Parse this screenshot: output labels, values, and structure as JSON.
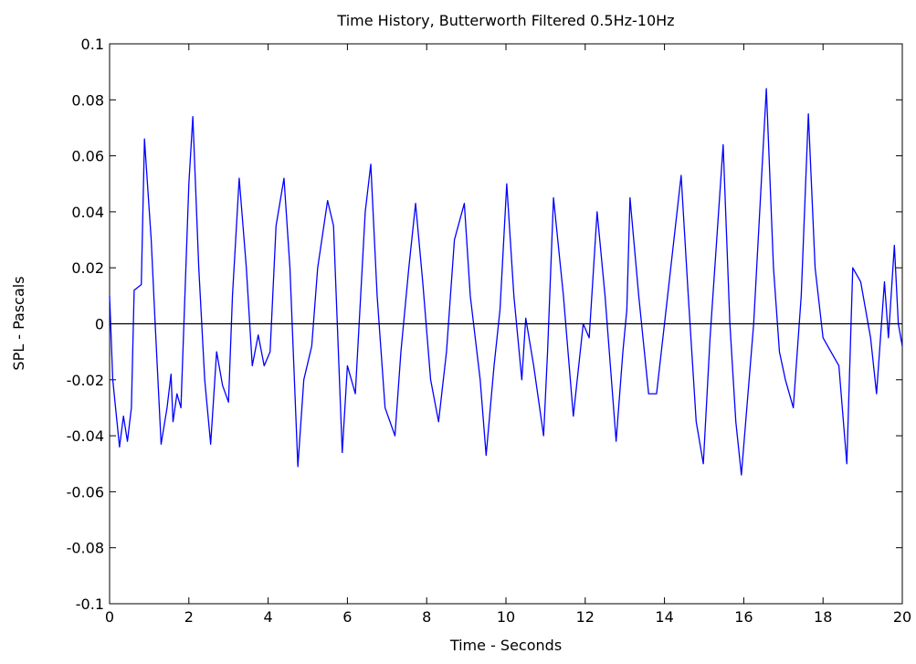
{
  "chart_data": {
    "type": "line",
    "title": "Time History, Butterworth Filtered 0.5Hz-10Hz",
    "x_label": "Time - Seconds",
    "y_label": "SPL - Pascals",
    "xlim": [
      0,
      20
    ],
    "xticks": [
      0,
      2,
      4,
      6,
      8,
      10,
      12,
      14,
      16,
      18,
      20
    ],
    "ylim": [
      -0.1,
      0.1
    ],
    "yticks": [
      -0.1,
      -0.08,
      -0.06,
      -0.04,
      -0.02,
      0,
      0.02,
      0.04,
      0.06,
      0.08,
      0.1
    ],
    "hline": 0,
    "hline_color": "#000000",
    "series": [
      {
        "color": "#0000ff",
        "x": [
          0,
          0.08,
          0.25,
          0.35,
          0.45,
          0.55,
          0.62,
          0.8,
          0.88,
          1.05,
          1.15,
          1.3,
          1.45,
          1.55,
          1.6,
          1.7,
          1.8,
          2.0,
          2.1,
          2.25,
          2.4,
          2.55,
          2.7,
          2.85,
          3.0,
          3.1,
          3.27,
          3.45,
          3.6,
          3.75,
          3.9,
          4.05,
          4.2,
          4.4,
          4.55,
          4.75,
          4.9,
          5.1,
          5.25,
          5.5,
          5.65,
          5.87,
          6.0,
          6.2,
          6.45,
          6.59,
          6.75,
          6.95,
          7.2,
          7.35,
          7.55,
          7.72,
          7.9,
          8.1,
          8.3,
          8.5,
          8.7,
          8.95,
          9.1,
          9.35,
          9.5,
          9.7,
          9.85,
          10.02,
          10.2,
          10.4,
          10.5,
          10.7,
          10.95,
          11.05,
          11.2,
          11.45,
          11.7,
          11.95,
          12.1,
          12.3,
          12.5,
          12.78,
          12.95,
          13.05,
          13.13,
          13.35,
          13.6,
          13.8,
          14.0,
          14.42,
          14.6,
          14.8,
          14.98,
          15.15,
          15.48,
          15.65,
          15.8,
          15.94,
          16.25,
          16.57,
          16.75,
          16.9,
          17.05,
          17.25,
          17.45,
          17.63,
          17.8,
          18.0,
          18.2,
          18.4,
          18.6,
          18.75,
          18.95,
          19.2,
          19.35,
          19.55,
          19.65,
          19.8,
          19.9,
          20
        ],
        "values": [
          0.01,
          -0.02,
          -0.044,
          -0.033,
          -0.042,
          -0.03,
          0.012,
          0.014,
          0.066,
          0.03,
          0.0,
          -0.043,
          -0.03,
          -0.018,
          -0.035,
          -0.025,
          -0.03,
          0.05,
          0.074,
          0.02,
          -0.02,
          -0.043,
          -0.01,
          -0.022,
          -0.028,
          0.01,
          0.052,
          0.02,
          -0.015,
          -0.004,
          -0.015,
          -0.01,
          0.035,
          0.052,
          0.02,
          -0.051,
          -0.02,
          -0.008,
          0.02,
          0.044,
          0.035,
          -0.046,
          -0.015,
          -0.025,
          0.04,
          0.057,
          0.01,
          -0.03,
          -0.04,
          -0.01,
          0.02,
          0.043,
          0.015,
          -0.02,
          -0.035,
          -0.01,
          0.03,
          0.043,
          0.01,
          -0.02,
          -0.047,
          -0.015,
          0.005,
          0.05,
          0.01,
          -0.02,
          0.002,
          -0.015,
          -0.04,
          -0.01,
          0.045,
          0.01,
          -0.033,
          0.0,
          -0.005,
          0.04,
          0.01,
          -0.042,
          -0.01,
          0.005,
          0.045,
          0.01,
          -0.025,
          -0.025,
          0.0,
          0.053,
          0.01,
          -0.035,
          -0.05,
          -0.005,
          0.064,
          0.0,
          -0.035,
          -0.054,
          0.0,
          0.084,
          0.02,
          -0.01,
          -0.02,
          -0.03,
          0.01,
          0.075,
          0.02,
          -0.005,
          -0.01,
          -0.015,
          -0.05,
          0.02,
          0.015,
          -0.005,
          -0.025,
          0.015,
          -0.005,
          0.028,
          0.0,
          -0.008
        ]
      }
    ]
  }
}
